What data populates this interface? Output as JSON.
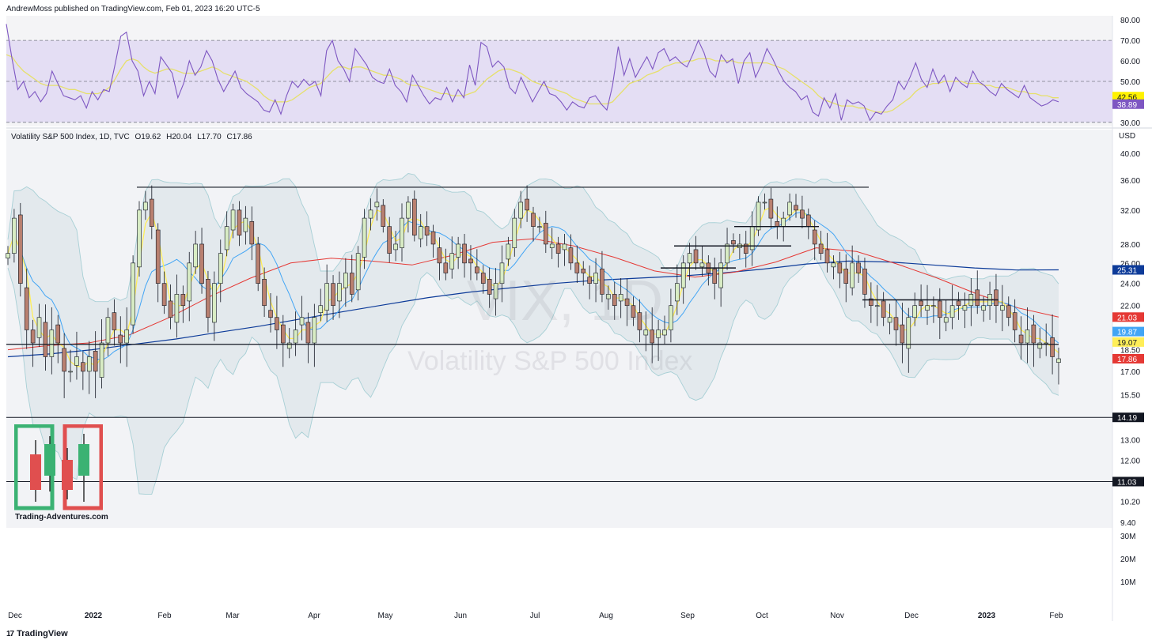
{
  "header": {
    "published": "AndrewMoss published on TradingView.com, Feb 01, 2023 16:20 UTC-5"
  },
  "footer": {
    "brand": "TradingView",
    "brand_icon": "tradingview-logo-icon"
  },
  "legend": {
    "symbol": "Volatility S&P 500 Index, 1D, TVC",
    "open": "O19.62",
    "high": "H20.04",
    "low": "L17.70",
    "close": "C17.86"
  },
  "watermark": {
    "ticker": "VIX, 1D",
    "name": "Volatility S&P 500 Index"
  },
  "logo": {
    "text": "Trading-Adventures.com"
  },
  "price_scale": {
    "currency": "USD"
  },
  "colors": {
    "rsi_line": "#7e57c2",
    "rsi_ma": "#e6e06a",
    "rsi_band": "#e4def4",
    "sma_fast": "#ffee58",
    "sma_mid": "#42a5f5",
    "sma_slow": "#e53935",
    "sma_long": "#0d3b99",
    "bb_fill": "#dde6ea",
    "bb_line": "#a7cfd5",
    "candle_up": "#d8ecc4",
    "candle_down": "#b98070",
    "wick": "#131722",
    "bg_upper": "#f2f3f6",
    "bg_lower": "#e4e5ea"
  },
  "chart_data": [
    {
      "type": "line",
      "title": "RSI",
      "ylim": [
        28,
        82
      ],
      "ticks": [
        "80.00",
        "70.00",
        "60.00",
        "50.00",
        "40.00",
        "30.00"
      ],
      "levels": [
        70,
        50,
        30
      ],
      "current": {
        "rsi": "38.89",
        "rsi_ma": "42.56"
      },
      "series": [
        {
          "values": [
            78,
            61,
            46,
            50,
            42,
            45,
            40,
            44,
            55,
            49,
            43,
            42,
            41,
            43,
            37,
            45,
            41,
            46,
            45,
            58,
            72,
            74,
            60,
            55,
            43,
            50,
            44,
            62,
            58,
            54,
            42,
            49,
            60,
            53,
            57,
            65,
            60,
            51,
            45,
            50,
            55,
            47,
            44,
            42,
            40,
            36,
            35,
            41,
            34,
            43,
            50,
            47,
            51,
            48,
            50,
            43,
            65,
            70,
            60,
            56,
            50,
            66,
            62,
            58,
            52,
            50,
            49,
            56,
            48,
            45,
            40,
            53,
            48,
            43,
            39,
            42,
            41,
            47,
            40,
            46,
            42,
            58,
            48,
            69,
            67,
            57,
            60,
            57,
            47,
            44,
            52,
            46,
            40,
            45,
            50,
            44,
            43,
            40,
            36,
            40,
            38,
            37,
            42,
            43,
            39,
            36,
            48,
            67,
            53,
            61,
            52,
            57,
            62,
            56,
            64,
            66,
            60,
            62,
            59,
            57,
            63,
            70,
            64,
            55,
            52,
            63,
            59,
            61,
            49,
            60,
            64,
            52,
            58,
            66,
            61,
            55,
            50,
            47,
            45,
            41,
            43,
            35,
            33,
            42,
            37,
            44,
            31,
            41,
            39,
            40,
            38,
            31,
            35,
            34,
            38,
            41,
            50,
            46,
            52,
            59,
            51,
            47,
            56,
            49,
            53,
            45,
            52,
            49,
            47,
            55,
            50,
            48,
            45,
            43,
            49,
            46,
            44,
            42,
            48,
            42,
            40,
            38,
            39,
            41,
            40
          ]
        },
        {
          "values": [
            63,
            62,
            58,
            55,
            53,
            51,
            49,
            48,
            48,
            48,
            47,
            46,
            46,
            45,
            44,
            44,
            44,
            45,
            47,
            51,
            56,
            60,
            61,
            60,
            57,
            55,
            54,
            55,
            56,
            56,
            55,
            54,
            54,
            54,
            55,
            56,
            57,
            56,
            54,
            53,
            52,
            51,
            50,
            48,
            46,
            43,
            41,
            40,
            40,
            40,
            41,
            43,
            45,
            47,
            48,
            49,
            52,
            55,
            57,
            57,
            56,
            57,
            57,
            56,
            55,
            54,
            53,
            53,
            52,
            51,
            49,
            48,
            48,
            47,
            46,
            45,
            44,
            44,
            43,
            43,
            43,
            44,
            45,
            48,
            51,
            53,
            55,
            56,
            56,
            55,
            54,
            52,
            50,
            49,
            48,
            47,
            46,
            45,
            44,
            42,
            41,
            40,
            39,
            39,
            39,
            39,
            40,
            43,
            46,
            49,
            50,
            51,
            53,
            54,
            55,
            57,
            58,
            59,
            59,
            60,
            60,
            61,
            61,
            61,
            60,
            60,
            60,
            60,
            59,
            59,
            59,
            59,
            59,
            59,
            58,
            57,
            56,
            54,
            52,
            50,
            48,
            46,
            43,
            41,
            40,
            39,
            38,
            38,
            38,
            37,
            37,
            36,
            35,
            35,
            35,
            36,
            38,
            40,
            42,
            45,
            47,
            48,
            49,
            49,
            50,
            50,
            50,
            50,
            49,
            49,
            49,
            48,
            48,
            47,
            47,
            47,
            46,
            45,
            45,
            44,
            44,
            43,
            43,
            42,
            42
          ]
        }
      ]
    },
    {
      "type": "candlestick",
      "title": "Volatility S&P 500 Index, 1D, TVC",
      "ylim": [
        9.2,
        41.5
      ],
      "log_scale": true,
      "x_labels": [
        "Dec",
        "2022",
        "Feb",
        "Mar",
        "Apr",
        "May",
        "Jun",
        "Jul",
        "Aug",
        "Sep",
        "Oct",
        "Nov",
        "Dec",
        "2023",
        "Feb"
      ],
      "price_ticks": [
        "40.00",
        "36.00",
        "32.00",
        "28.00",
        "26.00",
        "24.00",
        "22.00",
        "18.50",
        "17.00",
        "15.50",
        "13.00",
        "12.00",
        "10.20",
        "9.40"
      ],
      "volume_ticks": [
        "30M",
        "20M",
        "10M"
      ],
      "price_labels": [
        {
          "value": "25.31",
          "color": "#0d3b99"
        },
        {
          "value": "21.03",
          "color": "#e53935"
        },
        {
          "value": "19.87",
          "color": "#42a5f5"
        },
        {
          "value": "19.07",
          "color": "#ffee58"
        },
        {
          "value": "17.86",
          "color": "#e53935"
        }
      ],
      "horizontal_lines": [
        {
          "value": 35.0,
          "label": ""
        },
        {
          "value": 18.9,
          "label": ""
        },
        {
          "value": 14.19,
          "label": "14.19"
        },
        {
          "value": 11.03,
          "label": "11.03"
        }
      ],
      "close": [
        27,
        31,
        24,
        20,
        19,
        21,
        18,
        20,
        19,
        17,
        17,
        18,
        17,
        18,
        17,
        19,
        21,
        20,
        19,
        20,
        26,
        32,
        33,
        30,
        24,
        22,
        21,
        23,
        22,
        26,
        28,
        24,
        21,
        24,
        27,
        30,
        32,
        29,
        31,
        28,
        24,
        22,
        21,
        20,
        19,
        19,
        20,
        21,
        19,
        21,
        22,
        24,
        22,
        24,
        25,
        23,
        27,
        31,
        32,
        33,
        30,
        27,
        28,
        31,
        33,
        29,
        30,
        29,
        28,
        26,
        25,
        27,
        28,
        26,
        26,
        25,
        24,
        23,
        24,
        26,
        28,
        31,
        33,
        32,
        30,
        30,
        28,
        28,
        27,
        28,
        26,
        25,
        25,
        24,
        25,
        23,
        23,
        22,
        23,
        22,
        21,
        20,
        20,
        19,
        20,
        20,
        22,
        24,
        26,
        27,
        26,
        26,
        25,
        24,
        26,
        28,
        28,
        28,
        27,
        30,
        33,
        33,
        31,
        30,
        31,
        33,
        32,
        31,
        30,
        28,
        27,
        26,
        26,
        25,
        24,
        26,
        25,
        23,
        22,
        22,
        21,
        21,
        20,
        19,
        21,
        22,
        22,
        22,
        22,
        21,
        21,
        22,
        22,
        22,
        23,
        22,
        22,
        23,
        22,
        22,
        21,
        20,
        19,
        20,
        19,
        19,
        19,
        18,
        17.86
      ],
      "sma_long": [
        18,
        18.2,
        18.5,
        18.9,
        19.3,
        19.8,
        20.3,
        20.9,
        21.5,
        22.1,
        22.7,
        23.2,
        23.6,
        24,
        24.3,
        24.5,
        24.7,
        25,
        25.4,
        25.9,
        26.2,
        26.1,
        25.8,
        25.5,
        25.3,
        25.31
      ],
      "sma_slow": [
        18.5,
        18.8,
        19,
        19.6,
        21,
        22.8,
        24.5,
        26,
        26.5,
        26.2,
        25.8,
        26.8,
        28.2,
        28.6,
        27.8,
        26.6,
        25.2,
        24.6,
        25.1,
        26.1,
        27.6,
        27.2,
        25.9,
        24.5,
        23,
        21.8,
        21.03
      ]
    }
  ]
}
